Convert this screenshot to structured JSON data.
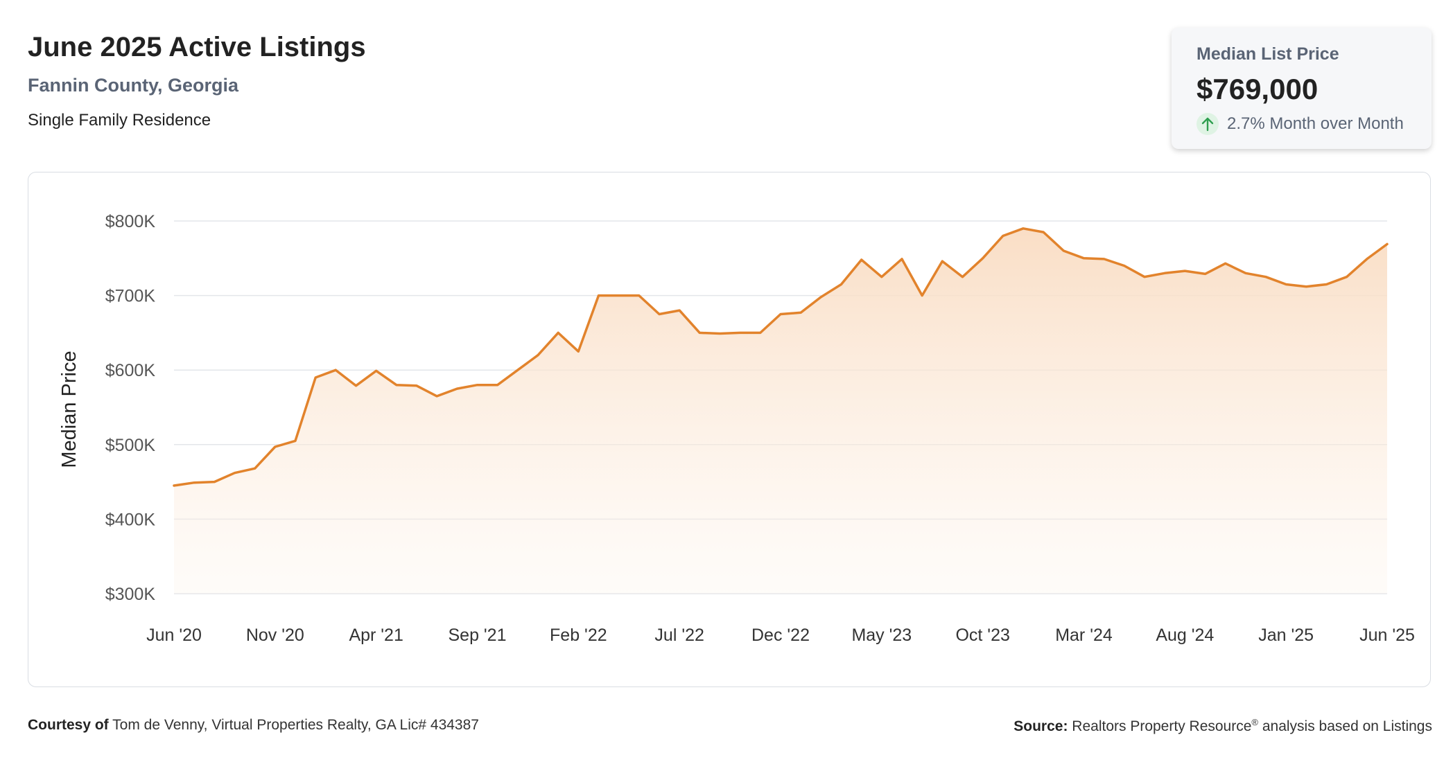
{
  "header": {
    "title": "June 2025 Active Listings",
    "subtitle": "Fannin County, Georgia",
    "property_type": "Single Family Residence"
  },
  "kpi": {
    "label": "Median List Price",
    "value": "$769,000",
    "change": "2.7% Month over Month",
    "direction_icon": "arrow-up-icon",
    "positive_color": "#2e9e4f"
  },
  "colors": {
    "line": "#e2832c",
    "area_top": "#f9dcc2",
    "grid": "#e3e6ea",
    "tick_text": "#555555"
  },
  "chart_data": {
    "type": "area",
    "ylabel": "Median Price",
    "xlabel": "",
    "ylim": [
      300000,
      800000
    ],
    "yticks": [
      300000,
      400000,
      500000,
      600000,
      700000,
      800000
    ],
    "ytick_labels": [
      "$300K",
      "$400K",
      "$500K",
      "$600K",
      "$700K",
      "$800K"
    ],
    "xtick_labels": [
      "Jun '20",
      "Nov '20",
      "Apr '21",
      "Sep '21",
      "Feb '22",
      "Jul '22",
      "Dec '22",
      "May '23",
      "Oct '23",
      "Mar '24",
      "Aug '24",
      "Jan '25",
      "Jun '25"
    ],
    "xtick_interval_months": 5,
    "grid": true,
    "legend": "none",
    "series": [
      {
        "values": [
          445000,
          449000,
          450000,
          462000,
          468000,
          497000,
          505000,
          590000,
          600000,
          579000,
          599000,
          580000,
          579000,
          565000,
          575000,
          580000,
          580000,
          600000,
          620000,
          650000,
          625000,
          700000,
          700000,
          700000,
          675000,
          680000,
          650000,
          649000,
          650000,
          650000,
          675000,
          677000,
          698000,
          715000,
          748000,
          725000,
          749000,
          700000,
          746000,
          725000,
          750000,
          780000,
          790000,
          785000,
          760000,
          750000,
          749000,
          740000,
          725000,
          730000,
          733000,
          729000,
          743000,
          730000,
          725000,
          715000,
          712000,
          715000,
          725000,
          749000,
          769000
        ]
      }
    ]
  },
  "footer": {
    "courtesy_label": "Courtesy of",
    "courtesy_text": "Tom de Venny, Virtual Properties Realty, GA Lic# 434387",
    "source_label": "Source:",
    "source_text_1": "Realtors Property Resource",
    "source_mark": "®",
    "source_text_2": " analysis based on Listings"
  }
}
